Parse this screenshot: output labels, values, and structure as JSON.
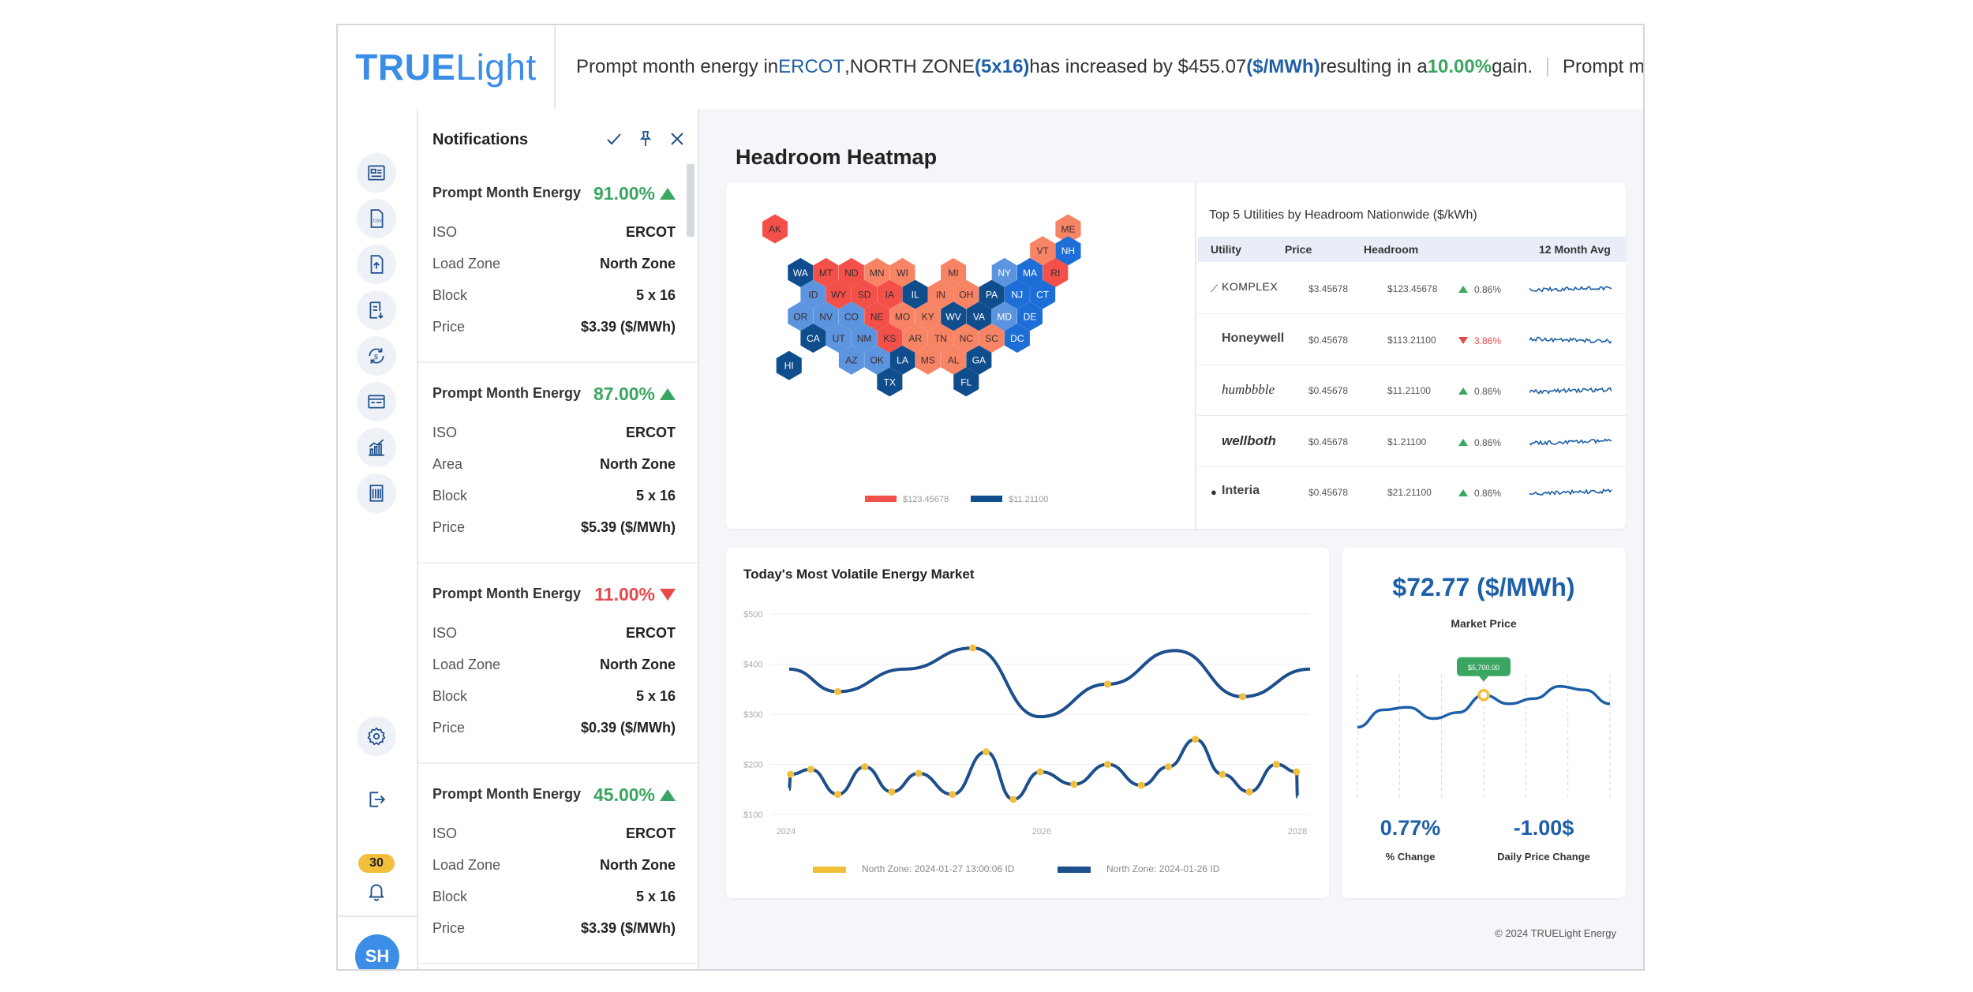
{
  "app": {
    "logo_bold": "TRUE",
    "logo_light": "Light"
  },
  "ticker": {
    "text1": "Prompt month energy in ",
    "iso": "ERCOT",
    "comma": ", ",
    "zone": "NORTH ZONE",
    "space": " ",
    "block": "(5x16)",
    "text2": " has increased by $455.07",
    "unit": "($/MWh)",
    "text3": " resulting in a ",
    "gain": "10.00%",
    "text4": " gain.",
    "next": "Prompt m"
  },
  "sidebar": {
    "badge_count": "30",
    "avatar": "SH"
  },
  "notifications": {
    "title": "Notifications",
    "items": [
      {
        "title": "Prompt Month Energy",
        "pct": "91.00%",
        "dir": "up",
        "rows": [
          {
            "k": "ISO",
            "v": "ERCOT"
          },
          {
            "k": "Load Zone",
            "v": "North Zone"
          },
          {
            "k": "Block",
            "v": "5 x 16"
          },
          {
            "k": "Price",
            "v": "$3.39 ($/MWh)"
          }
        ]
      },
      {
        "title": "Prompt Month Energy",
        "pct": "87.00%",
        "dir": "up",
        "rows": [
          {
            "k": "ISO",
            "v": "ERCOT"
          },
          {
            "k": "Area",
            "v": "North Zone"
          },
          {
            "k": "Block",
            "v": "5 x 16"
          },
          {
            "k": "Price",
            "v": "$5.39 ($/MWh)"
          }
        ]
      },
      {
        "title": "Prompt Month Energy",
        "pct": "11.00%",
        "dir": "down",
        "rows": [
          {
            "k": "ISO",
            "v": "ERCOT"
          },
          {
            "k": "Load Zone",
            "v": "North Zone"
          },
          {
            "k": "Block",
            "v": "5 x 16"
          },
          {
            "k": "Price",
            "v": "$0.39  ($/MWh)"
          }
        ]
      },
      {
        "title": "Prompt Month Energy",
        "pct": "45.00%",
        "dir": "up",
        "rows": [
          {
            "k": "ISO",
            "v": "ERCOT"
          },
          {
            "k": "Load Zone",
            "v": "North Zone"
          },
          {
            "k": "Block",
            "v": "5 x 16"
          },
          {
            "k": "Price",
            "v": "$3.39 ($/MWh)"
          }
        ]
      }
    ]
  },
  "main": {
    "title": "Headroom Heatmap",
    "footer": "© 2024 TRUELight Energy"
  },
  "heatmap": {
    "colors": {
      "red": "#f4504a",
      "salmon": "#f88466",
      "lightblue": "#5c94e0",
      "blue": "#1e6ed8",
      "navy": "#104d8c",
      "text_dark": "#3a2e2e",
      "text_light": "#ffffff"
    },
    "tiles": [
      {
        "st": "AK",
        "c": "red",
        "t": "dark"
      },
      {
        "st": "ME",
        "c": "salmon",
        "t": "dark"
      },
      {
        "st": "VT",
        "c": "salmon",
        "t": "dark"
      },
      {
        "st": "NH",
        "c": "blue",
        "t": "light"
      },
      {
        "st": "WA",
        "c": "navy",
        "t": "light"
      },
      {
        "st": "MT",
        "c": "red",
        "t": "dark"
      },
      {
        "st": "ND",
        "c": "red",
        "t": "dark"
      },
      {
        "st": "MN",
        "c": "salmon",
        "t": "dark"
      },
      {
        "st": "WI",
        "c": "salmon",
        "t": "dark"
      },
      {
        "st": "MI",
        "c": "salmon",
        "t": "dark"
      },
      {
        "st": "NY",
        "c": "lightblue",
        "t": "light"
      },
      {
        "st": "MA",
        "c": "blue",
        "t": "light"
      },
      {
        "st": "RI",
        "c": "red",
        "t": "dark"
      },
      {
        "st": "ID",
        "c": "lightblue",
        "t": "dark"
      },
      {
        "st": "WY",
        "c": "red",
        "t": "dark"
      },
      {
        "st": "SD",
        "c": "red",
        "t": "dark"
      },
      {
        "st": "IA",
        "c": "red",
        "t": "dark"
      },
      {
        "st": "IL",
        "c": "navy",
        "t": "light"
      },
      {
        "st": "IN",
        "c": "salmon",
        "t": "dark"
      },
      {
        "st": "OH",
        "c": "salmon",
        "t": "dark"
      },
      {
        "st": "PA",
        "c": "navy",
        "t": "light"
      },
      {
        "st": "NJ",
        "c": "blue",
        "t": "light"
      },
      {
        "st": "CT",
        "c": "blue",
        "t": "light"
      },
      {
        "st": "OR",
        "c": "lightblue",
        "t": "dark"
      },
      {
        "st": "NV",
        "c": "lightblue",
        "t": "dark"
      },
      {
        "st": "CO",
        "c": "lightblue",
        "t": "dark"
      },
      {
        "st": "NE",
        "c": "red",
        "t": "dark"
      },
      {
        "st": "MO",
        "c": "salmon",
        "t": "dark"
      },
      {
        "st": "KY",
        "c": "salmon",
        "t": "dark"
      },
      {
        "st": "WV",
        "c": "navy",
        "t": "light"
      },
      {
        "st": "VA",
        "c": "navy",
        "t": "light"
      },
      {
        "st": "MD",
        "c": "lightblue",
        "t": "light"
      },
      {
        "st": "DE",
        "c": "blue",
        "t": "light"
      },
      {
        "st": "CA",
        "c": "navy",
        "t": "light"
      },
      {
        "st": "UT",
        "c": "lightblue",
        "t": "dark"
      },
      {
        "st": "NM",
        "c": "lightblue",
        "t": "dark"
      },
      {
        "st": "KS",
        "c": "red",
        "t": "dark"
      },
      {
        "st": "AR",
        "c": "salmon",
        "t": "dark"
      },
      {
        "st": "TN",
        "c": "salmon",
        "t": "dark"
      },
      {
        "st": "NC",
        "c": "salmon",
        "t": "dark"
      },
      {
        "st": "SC",
        "c": "salmon",
        "t": "dark"
      },
      {
        "st": "DC",
        "c": "blue",
        "t": "light"
      },
      {
        "st": "HI",
        "c": "navy",
        "t": "light"
      },
      {
        "st": "AZ",
        "c": "lightblue",
        "t": "dark"
      },
      {
        "st": "OK",
        "c": "lightblue",
        "t": "dark"
      },
      {
        "st": "LA",
        "c": "navy",
        "t": "light"
      },
      {
        "st": "MS",
        "c": "salmon",
        "t": "dark"
      },
      {
        "st": "AL",
        "c": "salmon",
        "t": "dark"
      },
      {
        "st": "GA",
        "c": "navy",
        "t": "light"
      },
      {
        "st": "TX",
        "c": "navy",
        "t": "light"
      },
      {
        "st": "FL",
        "c": "navy",
        "t": "light"
      }
    ],
    "legend": [
      {
        "label": "$123.45678",
        "color": "#f4504a"
      },
      {
        "label": "$11.21100",
        "color": "#104d8c"
      }
    ]
  },
  "utilities": {
    "title": "Top 5 Utilities by Headroom Nationwide ($/kWh)",
    "headers": [
      "Utility",
      "Price",
      "Headroom",
      "12 Month Avg"
    ],
    "rows": [
      {
        "name": "KOMPLEX",
        "price": "$3.45678",
        "headroom": "$123.45678",
        "change": "0.86%",
        "dir": "up"
      },
      {
        "name": "Honeywell",
        "price": "$0.45678",
        "headroom": "$113.21100",
        "change": "3.86%",
        "dir": "down"
      },
      {
        "name": "humbbble",
        "price": "$0.45678",
        "headroom": "$11.21100",
        "change": "0.86%",
        "dir": "up"
      },
      {
        "name": "wellboth",
        "price": "$0.45678",
        "headroom": "$1.21100",
        "change": "0.86%",
        "dir": "up"
      },
      {
        "name": "Interia",
        "price": "$0.45678",
        "headroom": "$21.21100",
        "change": "0.86%",
        "dir": "up"
      }
    ]
  },
  "volatile": {
    "title": "Today's Most Volatile Energy Market",
    "legend": [
      {
        "label": "North Zone: 2024-01-27 13:00:06 ID",
        "color": "#f2bf3c"
      },
      {
        "label": "North Zone: 2024-01-26 ID",
        "color": "#1d4f8c"
      }
    ]
  },
  "chart_data": [
    {
      "type": "line",
      "title": "Today's Most Volatile Energy Market",
      "yticks": [
        "$500",
        "$400",
        "$300",
        "$200",
        "$100"
      ],
      "xticks": [
        "2024",
        "2026",
        "2028"
      ],
      "ylim": [
        100,
        500
      ],
      "xlim": [
        2024,
        2028
      ],
      "series": [
        {
          "name": "North Zone: 2024-01-26 ID",
          "color": "#1d4f8c",
          "x": [
            2024.0,
            2024.5,
            2025.0,
            2025.5,
            2026.0,
            2026.5,
            2027.0,
            2027.5,
            2028.0
          ],
          "y": [
            390,
            345,
            390,
            432,
            295,
            360,
            427,
            335,
            390
          ]
        },
        {
          "name": "North Zone: 2024-01-27 13:00:06 ID",
          "color": "#f2bf3c",
          "x": [
            2024.0,
            2024.15,
            2024.3,
            2024.5,
            2024.7,
            2024.9,
            2025.1,
            2025.35,
            2025.6,
            2025.8,
            2026.0,
            2026.25,
            2026.5,
            2026.75,
            2026.95,
            2027.15,
            2027.35,
            2027.55,
            2027.75,
            2027.9,
            2028.0
          ],
          "y": [
            150,
            180,
            190,
            140,
            195,
            145,
            182,
            140,
            225,
            130,
            185,
            160,
            200,
            158,
            195,
            250,
            180,
            145,
            200,
            185,
            135
          ]
        }
      ]
    },
    {
      "type": "line",
      "series": [
        {
          "name": "",
          "color": "#1d5fa8",
          "y": [
            0.35,
            0.55,
            0.58,
            0.45,
            0.52,
            0.72,
            0.62,
            0.68,
            0.82,
            0.78,
            0.62
          ]
        }
      ],
      "highlight": {
        "index": 5,
        "label": "$5,700.00"
      }
    }
  ],
  "market": {
    "price": "$72.77 ($/MWh)",
    "price_label": "Market Price",
    "pct": "0.77%",
    "pct_label": "% Change",
    "daily": "-1.00$",
    "daily_label": "Daily Price Change"
  }
}
